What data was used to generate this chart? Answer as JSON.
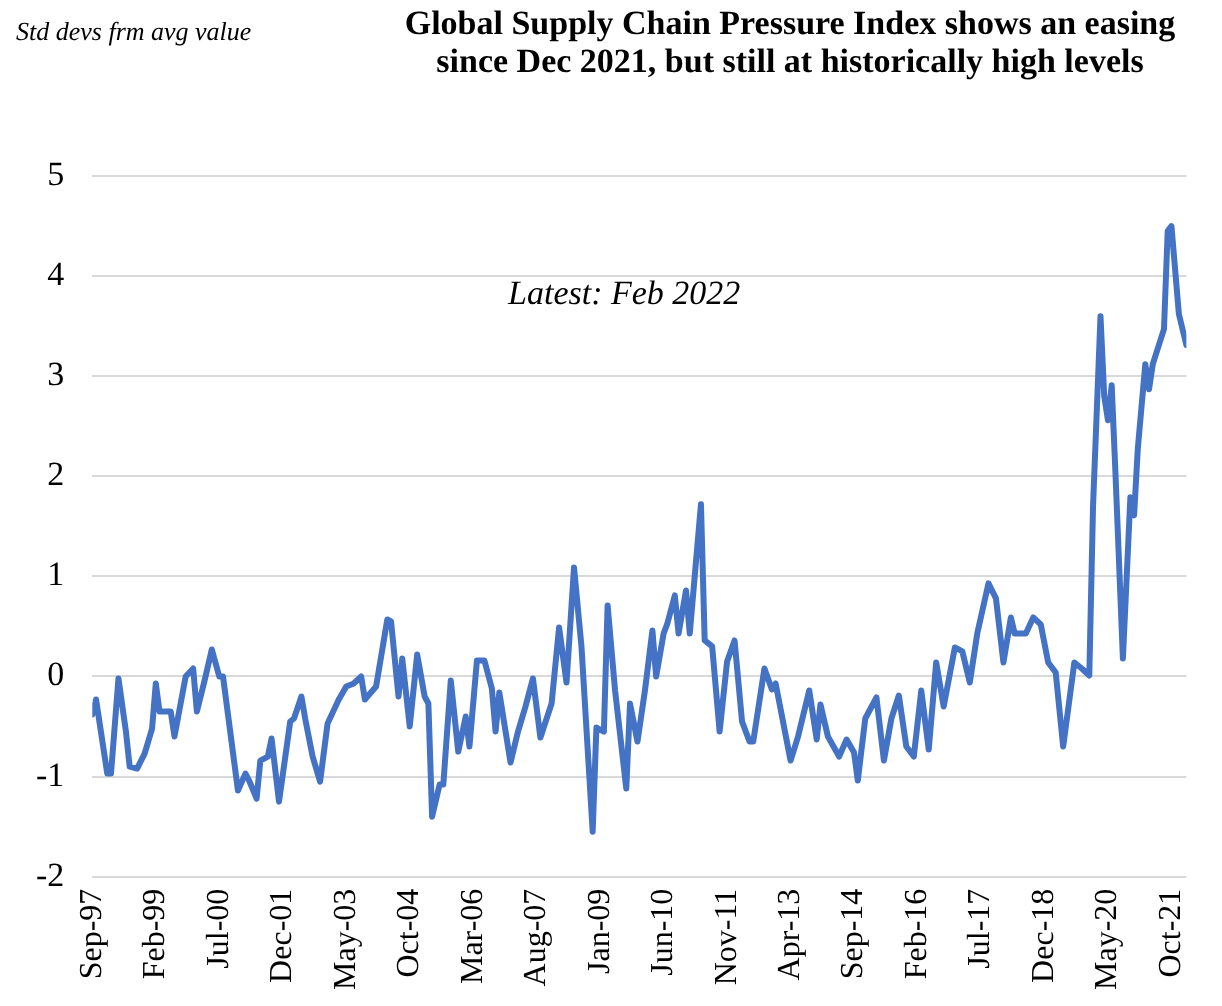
{
  "chart_data": {
    "type": "line",
    "title": "Global Supply Chain Pressure Index shows an easing since Dec 2021, but still at historically high levels",
    "ylabel": "Std devs frm avg value",
    "annotations": [
      "Latest: Feb 2022"
    ],
    "x": [
      "1997-09",
      "1997-10",
      "1998-01",
      "1998-02",
      "1998-04",
      "1998-06",
      "1998-07",
      "1998-09",
      "1998-11",
      "1999-01",
      "1999-02",
      "1999-03",
      "1999-06",
      "1999-07",
      "1999-10",
      "1999-12",
      "2000-01",
      "2000-03",
      "2000-05",
      "2000-07",
      "2000-08",
      "2000-12",
      "2001-02",
      "2001-03",
      "2001-05",
      "2001-06",
      "2001-08",
      "2001-09",
      "2001-11",
      "2002-02",
      "2002-03",
      "2002-05",
      "2002-06",
      "2002-08",
      "2002-10",
      "2002-12",
      "2003-03",
      "2003-05",
      "2003-07",
      "2003-09",
      "2003-10",
      "2004-01",
      "2004-04",
      "2004-05",
      "2004-07",
      "2004-08",
      "2004-10",
      "2004-12",
      "2005-02",
      "2005-03",
      "2005-04",
      "2005-06",
      "2005-07",
      "2005-09",
      "2005-11",
      "2006-01",
      "2006-02",
      "2006-04",
      "2006-06",
      "2006-08",
      "2006-09",
      "2006-10",
      "2007-01",
      "2007-03",
      "2007-05",
      "2007-07",
      "2007-09",
      "2007-12",
      "2008-02",
      "2008-04",
      "2008-06",
      "2008-08",
      "2008-11",
      "2008-12",
      "2009-02",
      "2009-03",
      "2009-05",
      "2009-08",
      "2009-09",
      "2009-11",
      "2010-01",
      "2010-03",
      "2010-04",
      "2010-06",
      "2010-07",
      "2010-09",
      "2010-10",
      "2010-12",
      "2011-01",
      "2011-04",
      "2011-05",
      "2011-07",
      "2011-09",
      "2011-11",
      "2012-01",
      "2012-03",
      "2012-05",
      "2012-06",
      "2012-09",
      "2012-11",
      "2012-12",
      "2013-04",
      "2013-06",
      "2013-09",
      "2013-11",
      "2013-12",
      "2014-02",
      "2014-05",
      "2014-07",
      "2014-09",
      "2014-10",
      "2014-12",
      "2015-01",
      "2015-03",
      "2015-05",
      "2015-07",
      "2015-09",
      "2015-11",
      "2016-01",
      "2016-03",
      "2016-05",
      "2016-07",
      "2016-09",
      "2016-12",
      "2017-02",
      "2017-04",
      "2017-06",
      "2017-09",
      "2017-11",
      "2018-01",
      "2018-03",
      "2018-04",
      "2018-07",
      "2018-09",
      "2018-11",
      "2019-01",
      "2019-03",
      "2019-05",
      "2019-06",
      "2019-08",
      "2019-10",
      "2019-12",
      "2020-01",
      "2020-03",
      "2020-04",
      "2020-05",
      "2020-06",
      "2020-07",
      "2020-09",
      "2020-10",
      "2020-11",
      "2020-12",
      "2021-01",
      "2021-03",
      "2021-04",
      "2021-05",
      "2021-08",
      "2021-09",
      "2021-10",
      "2021-12",
      "2022-02"
    ],
    "series": [
      {
        "color": "#4472c4",
        "values": [
          -0.38,
          -0.23,
          -0.97,
          -0.97,
          -0.02,
          -0.55,
          -0.9,
          -0.92,
          -0.77,
          -0.52,
          -0.07,
          -0.35,
          -0.35,
          -0.6,
          0.0,
          0.08,
          -0.35,
          -0.05,
          0.27,
          0.0,
          0.0,
          -1.14,
          -0.97,
          -1.04,
          -1.22,
          -0.84,
          -0.8,
          -0.62,
          -1.25,
          -0.45,
          -0.42,
          -0.2,
          -0.42,
          -0.8,
          -1.05,
          -0.47,
          -0.23,
          -0.1,
          -0.07,
          0.0,
          -0.23,
          -0.1,
          0.57,
          0.55,
          -0.2,
          0.18,
          -0.5,
          0.22,
          -0.2,
          -0.27,
          -1.4,
          -1.08,
          -1.08,
          -0.04,
          -0.75,
          -0.4,
          -0.7,
          0.16,
          0.16,
          -0.12,
          -0.55,
          -0.16,
          -0.86,
          -0.55,
          -0.3,
          -0.02,
          -0.61,
          -0.27,
          0.49,
          -0.06,
          1.09,
          0.3,
          -1.55,
          -0.51,
          -0.55,
          0.71,
          -0.14,
          -1.12,
          -0.27,
          -0.65,
          -0.14,
          0.46,
          0.0,
          0.43,
          0.53,
          0.81,
          0.43,
          0.86,
          0.43,
          1.72,
          0.36,
          0.3,
          -0.55,
          0.15,
          0.36,
          -0.45,
          -0.65,
          -0.65,
          0.08,
          -0.13,
          -0.07,
          -0.84,
          -0.6,
          -0.14,
          -0.63,
          -0.28,
          -0.6,
          -0.8,
          -0.63,
          -0.76,
          -1.04,
          -0.42,
          -0.35,
          -0.21,
          -0.84,
          -0.42,
          -0.19,
          -0.7,
          -0.8,
          -0.14,
          -0.73,
          0.14,
          -0.3,
          0.29,
          0.25,
          -0.06,
          0.43,
          0.93,
          0.78,
          0.14,
          0.59,
          0.43,
          0.43,
          0.59,
          0.52,
          0.14,
          0.04,
          -0.7,
          -0.42,
          0.14,
          0.08,
          0.01,
          1.7,
          3.6,
          2.8,
          2.56,
          2.91,
          2.04,
          0.18,
          0.98,
          1.79,
          1.61,
          2.28,
          3.12,
          2.87,
          3.12,
          3.47,
          4.45,
          4.5,
          3.62,
          3.31
        ]
      }
    ],
    "xlim": [
      "1997-09",
      "2022-02"
    ],
    "xticks": [
      {
        "value": "1997-09",
        "label": "Sep-97"
      },
      {
        "value": "1999-02",
        "label": "Feb-99"
      },
      {
        "value": "2000-07",
        "label": "Jul-00"
      },
      {
        "value": "2001-12",
        "label": "Dec-01"
      },
      {
        "value": "2003-05",
        "label": "May-03"
      },
      {
        "value": "2004-10",
        "label": "Oct-04"
      },
      {
        "value": "2006-03",
        "label": "Mar-06"
      },
      {
        "value": "2007-08",
        "label": "Aug-07"
      },
      {
        "value": "2009-01",
        "label": "Jan-09"
      },
      {
        "value": "2010-06",
        "label": "Jun-10"
      },
      {
        "value": "2011-11",
        "label": "Nov-11"
      },
      {
        "value": "2013-04",
        "label": "Apr-13"
      },
      {
        "value": "2014-09",
        "label": "Sep-14"
      },
      {
        "value": "2016-02",
        "label": "Feb-16"
      },
      {
        "value": "2017-07",
        "label": "Jul-17"
      },
      {
        "value": "2018-12",
        "label": "Dec-18"
      },
      {
        "value": "2020-05",
        "label": "May-20"
      },
      {
        "value": "2021-10",
        "label": "Oct-21"
      }
    ],
    "ylim": [
      -2,
      5
    ],
    "yticks": [
      -2,
      -1,
      0,
      1,
      2,
      3,
      4,
      5
    ],
    "grid": "y",
    "legend": false,
    "marker": "none",
    "line_style": "solid"
  }
}
